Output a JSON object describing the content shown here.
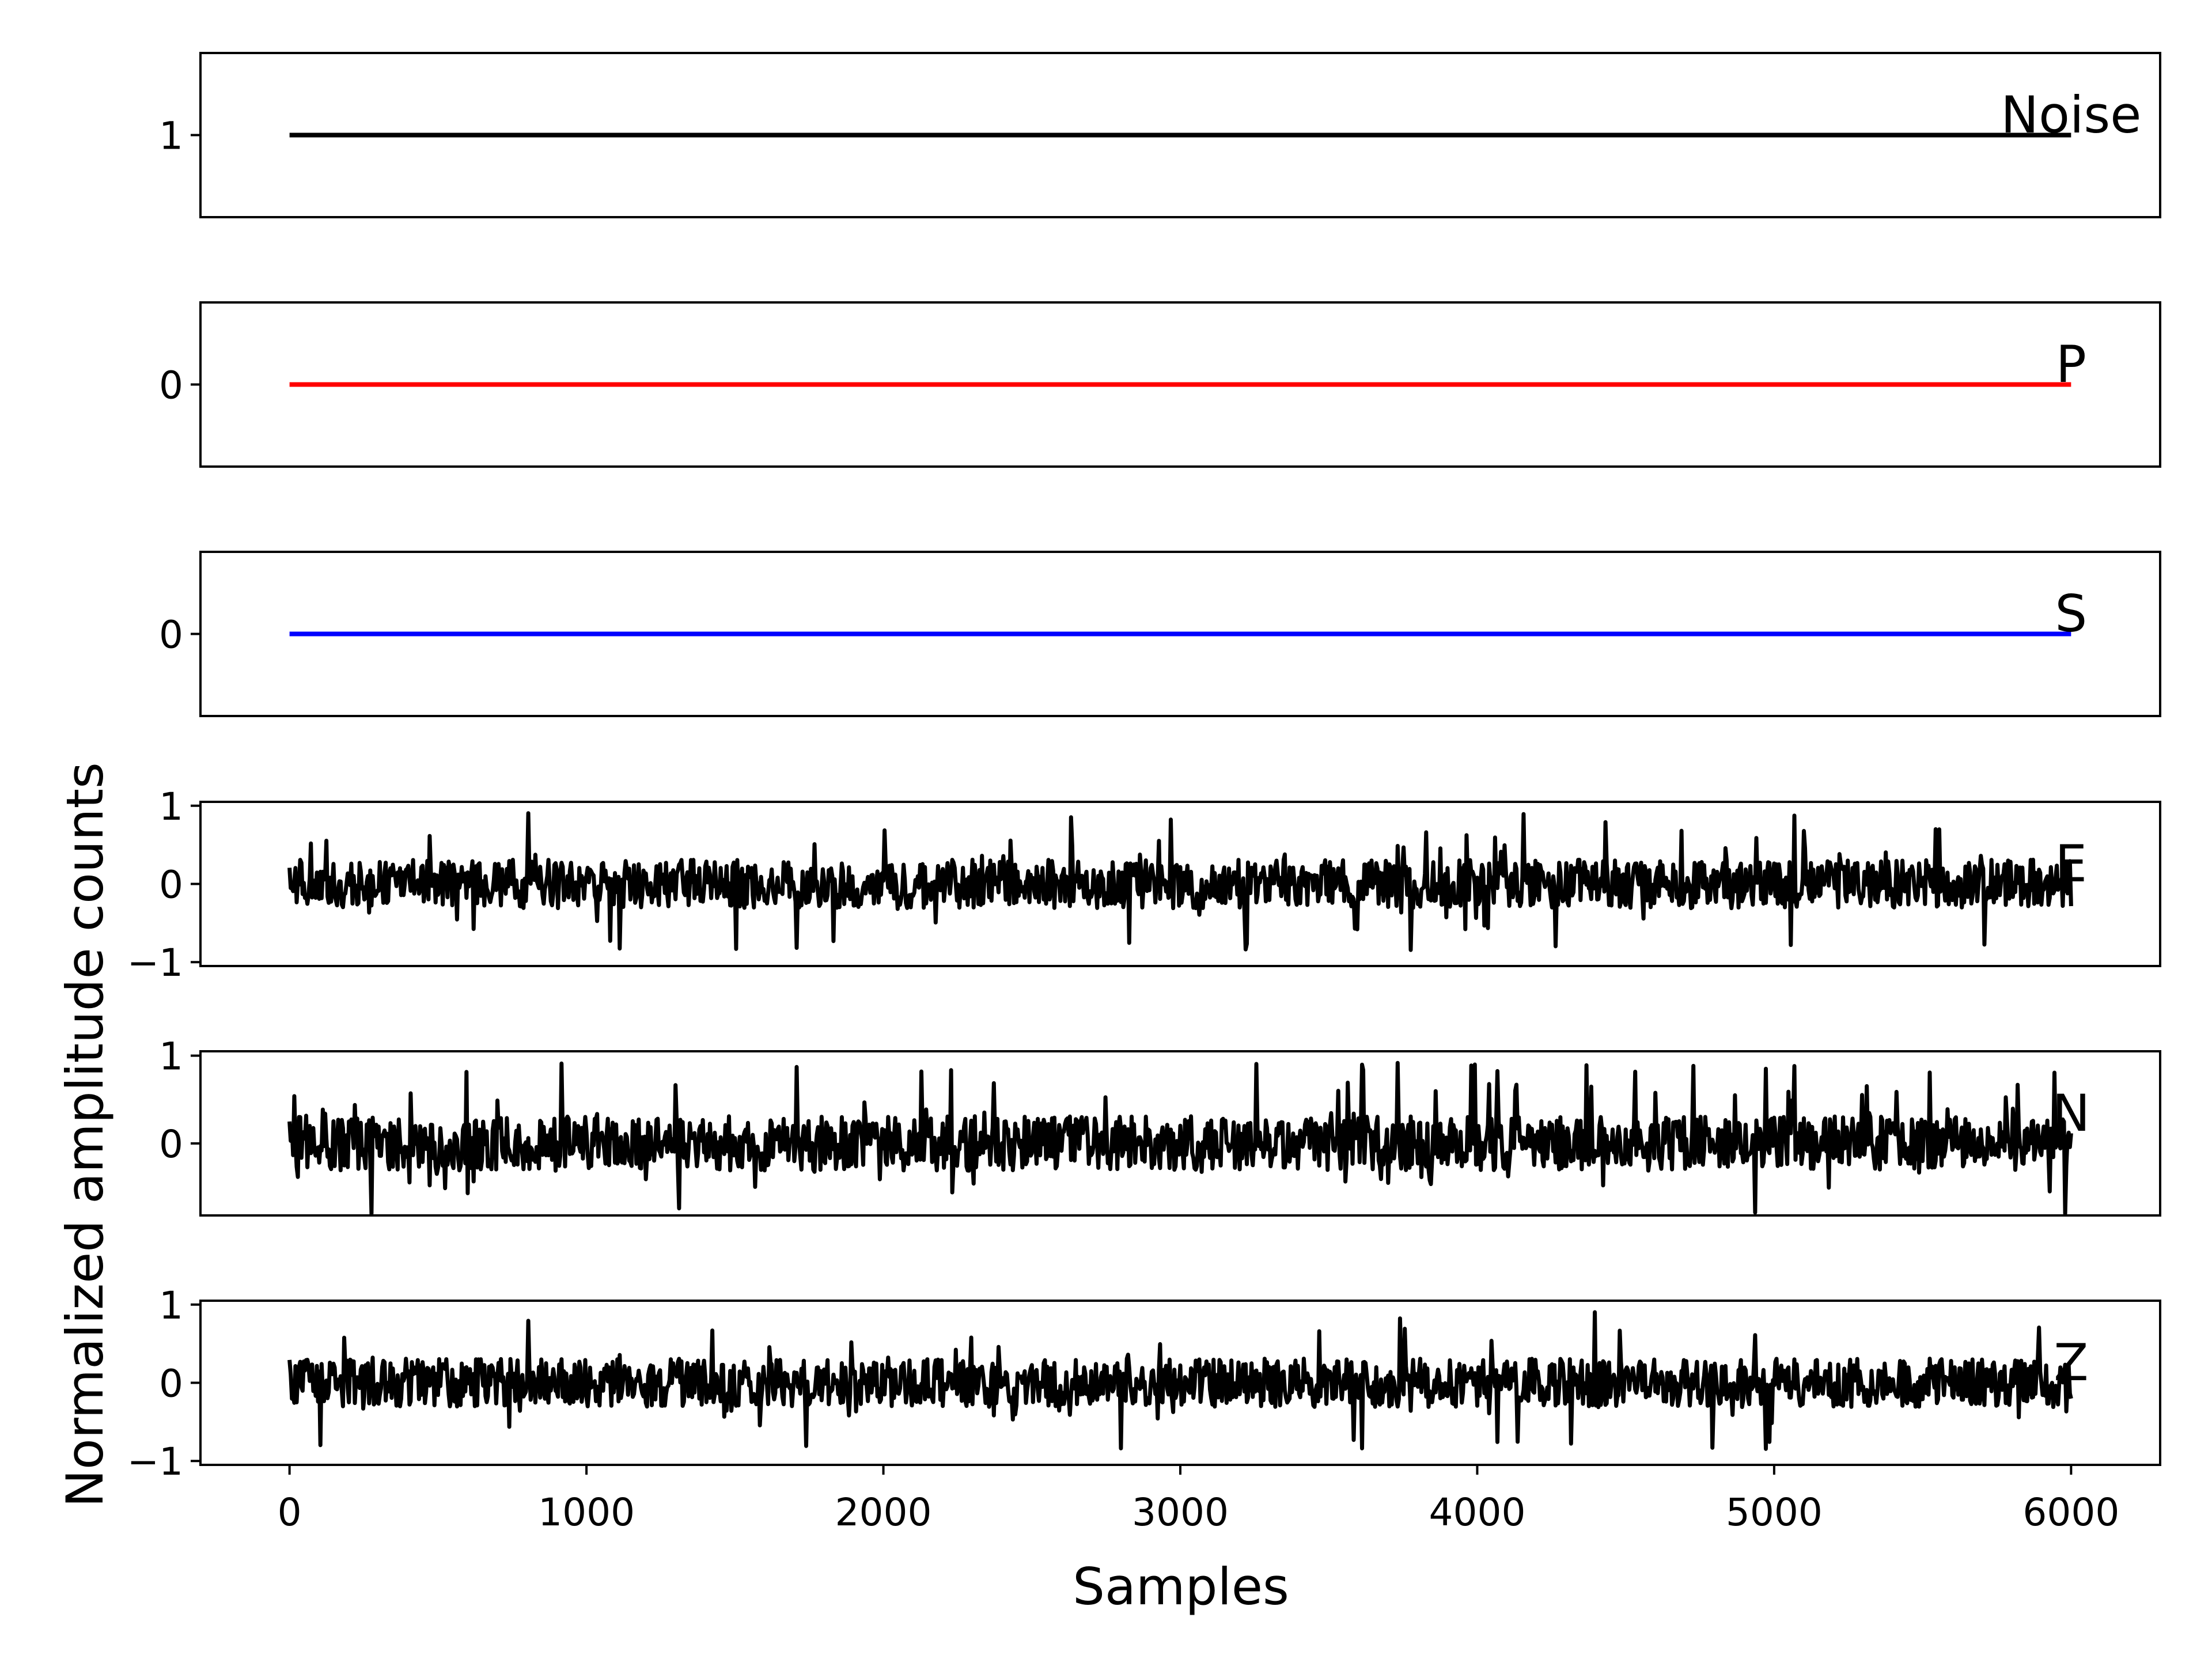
{
  "chart_data": {
    "type": "line",
    "xlabel": "Samples",
    "ylabel": "Normalized amplitude counts",
    "xlim": [
      -300,
      6300
    ],
    "xticks": [
      0,
      1000,
      2000,
      3000,
      4000,
      5000,
      6000
    ],
    "x": {
      "start": 0,
      "end": 6000
    },
    "grid": false,
    "panels": [
      {
        "label": "Noise",
        "color": "#000000",
        "ylim": [
          0.94,
          1.06
        ],
        "yticks": [
          1
        ],
        "waveform": false,
        "value": 1
      },
      {
        "label": "P",
        "color": "#ff0000",
        "ylim": [
          -0.06,
          0.06
        ],
        "yticks": [
          0
        ],
        "waveform": false,
        "value": 0
      },
      {
        "label": "S",
        "color": "#0000ff",
        "ylim": [
          -0.06,
          0.06
        ],
        "yticks": [
          0
        ],
        "waveform": false,
        "value": 0
      },
      {
        "label": "E",
        "color": "#000000",
        "ylim": [
          -1.05,
          1.05
        ],
        "yticks": [
          -1,
          0,
          1
        ],
        "waveform": true,
        "amplitude": 1
      },
      {
        "label": "N",
        "color": "#000000",
        "ylim": [
          -0.82,
          1.05
        ],
        "yticks": [
          0,
          1
        ],
        "waveform": true,
        "amplitude": 1
      },
      {
        "label": "Z",
        "color": "#000000",
        "ylim": [
          -1.05,
          1.05
        ],
        "yticks": [
          -1,
          0,
          1
        ],
        "waveform": true,
        "amplitude": 1
      }
    ]
  }
}
